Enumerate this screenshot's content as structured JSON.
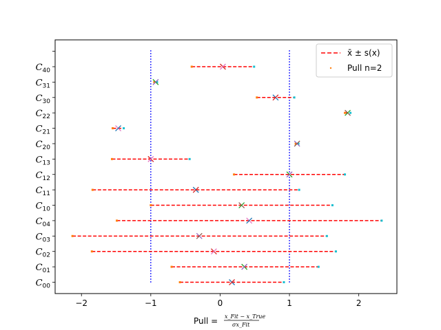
{
  "chart_data": {
    "type": "scatter",
    "title": "",
    "xlabel_prefix": "Pull = ",
    "xlabel_numerator": "x_Fit − x_True",
    "xlabel_denominator": "σx_Fit",
    "xlim": [
      -2.38,
      2.55
    ],
    "xticks": [
      -2,
      -1,
      0,
      1,
      2
    ],
    "xtick_labels": [
      "−2",
      "−1",
      "0",
      "1",
      "2"
    ],
    "vlines": [
      -1,
      1
    ],
    "vline_color": "#0000ff",
    "mean_color": "#ff0000",
    "pull_colors": [
      "#ff7f0e",
      "#17becf"
    ],
    "marker_colors": [
      "#1f77b4",
      "#2ca02c",
      "#d62728",
      "#9467bd",
      "#e377c2",
      "#8c564b"
    ],
    "legend": {
      "placement": "top-right",
      "entries": [
        {
          "label": "x̄ ± s(x)",
          "kind": "dashed-line",
          "color": "#ff0000"
        },
        {
          "label": "Pull n=2",
          "kind": "dot",
          "color": "#ff7f0e"
        }
      ]
    },
    "categories": [
      {
        "base": "C",
        "sub": "00",
        "mean": 0.17,
        "lo": -0.58,
        "hi": 0.92,
        "pulls": [
          -0.58,
          0.92
        ]
      },
      {
        "base": "C",
        "sub": "01",
        "mean": 0.35,
        "lo": -0.7,
        "hi": 1.42,
        "pulls": [
          -0.7,
          1.42
        ]
      },
      {
        "base": "C",
        "sub": "02",
        "mean": -0.09,
        "lo": -1.85,
        "hi": 1.67,
        "pulls": [
          -1.85,
          1.67
        ]
      },
      {
        "base": "C",
        "sub": "03",
        "mean": -0.3,
        "lo": -2.13,
        "hi": 1.54,
        "pulls": [
          -2.13,
          1.54
        ]
      },
      {
        "base": "C",
        "sub": "04",
        "mean": 0.42,
        "lo": -1.49,
        "hi": 2.33,
        "pulls": [
          -1.49,
          2.33
        ]
      },
      {
        "base": "C",
        "sub": "10",
        "mean": 0.31,
        "lo": -1.0,
        "hi": 1.62,
        "pulls": [
          -1.0,
          1.62
        ]
      },
      {
        "base": "C",
        "sub": "11",
        "mean": -0.35,
        "lo": -1.84,
        "hi": 1.14,
        "pulls": [
          -1.84,
          1.14
        ]
      },
      {
        "base": "C",
        "sub": "12",
        "mean": 1.0,
        "lo": 0.2,
        "hi": 1.8,
        "pulls": [
          0.2,
          1.8
        ]
      },
      {
        "base": "C",
        "sub": "13",
        "mean": -1.0,
        "lo": -1.56,
        "hi": -0.44,
        "pulls": [
          -1.56,
          -0.44
        ]
      },
      {
        "base": "C",
        "sub": "20",
        "mean": 1.11,
        "lo": 1.09,
        "hi": 1.13,
        "pulls": [
          1.09,
          1.13
        ]
      },
      {
        "base": "C",
        "sub": "21",
        "mean": -1.47,
        "lo": -1.55,
        "hi": -1.39,
        "pulls": [
          -1.55,
          -1.39
        ]
      },
      {
        "base": "C",
        "sub": "22",
        "mean": 1.84,
        "lo": 1.8,
        "hi": 1.88,
        "pulls": [
          1.8,
          1.88
        ]
      },
      {
        "base": "C",
        "sub": "30",
        "mean": 0.8,
        "lo": 0.53,
        "hi": 1.07,
        "pulls": [
          0.53,
          1.07
        ]
      },
      {
        "base": "C",
        "sub": "31",
        "mean": -0.93,
        "lo": -0.95,
        "hi": -0.91,
        "pulls": [
          -0.95,
          -0.91
        ]
      },
      {
        "base": "C",
        "sub": "40",
        "mean": 0.04,
        "lo": -0.41,
        "hi": 0.49,
        "pulls": [
          -0.41,
          0.49
        ]
      }
    ]
  }
}
